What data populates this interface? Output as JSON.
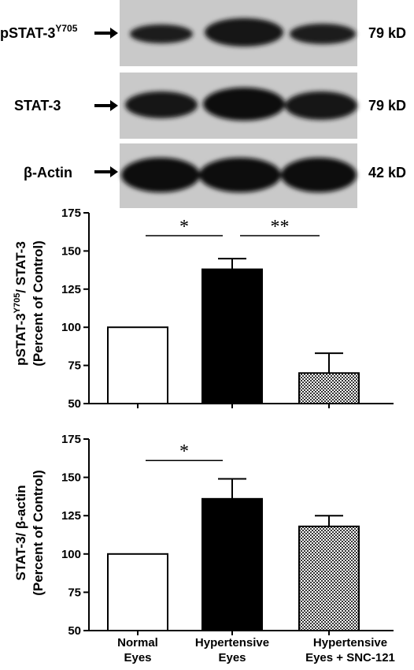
{
  "blots": [
    {
      "label": "pSTAT-3",
      "sup": "Y705",
      "kd": "79 kD"
    },
    {
      "label": "STAT-3",
      "sup": "",
      "kd": "79 kD"
    },
    {
      "label": "β-Actin",
      "sup": "",
      "kd": "42 kD"
    }
  ],
  "chart_data": [
    {
      "type": "bar",
      "categories": [
        "Normal Eyes",
        "Hypertensive Eyes",
        "Hypertensive Eyes + SNC-121"
      ],
      "values": [
        100,
        138,
        70
      ],
      "errors": [
        0,
        7,
        13
      ],
      "ylim": [
        50,
        175
      ],
      "yticks": [
        50,
        75,
        100,
        125,
        150,
        175
      ],
      "ylabel_line1_prefix": "pSTAT-3",
      "ylabel_line1_sup": "Y705",
      "ylabel_line1_suffix": "/ STAT-3",
      "ylabel_line2": "(Percent of Control)",
      "fills": [
        "#ffffff",
        "#000000",
        "checker"
      ],
      "annotations": [
        {
          "text": "*",
          "from": 0,
          "to": 1,
          "y": 160
        },
        {
          "text": "**",
          "from": 1,
          "to": 2,
          "y": 160
        }
      ]
    },
    {
      "type": "bar",
      "categories": [
        "Normal Eyes",
        "Hypertensive Eyes",
        "Hypertensive Eyes + SNC-121"
      ],
      "values": [
        100,
        136,
        118
      ],
      "errors": [
        0,
        13,
        7
      ],
      "ylim": [
        50,
        175
      ],
      "yticks": [
        50,
        75,
        100,
        125,
        150,
        175
      ],
      "ylabel_line1_prefix": "STAT-3/ β-actin",
      "ylabel_line1_sup": "",
      "ylabel_line1_suffix": "",
      "ylabel_line2": "(Percent of Control)",
      "fills": [
        "#ffffff",
        "#000000",
        "checker"
      ],
      "annotations": [
        {
          "text": "*",
          "from": 0,
          "to": 1,
          "y": 161
        }
      ]
    }
  ],
  "x_labels": [
    {
      "line1": "Normal",
      "line2": "Eyes"
    },
    {
      "line1": "Hypertensive",
      "line2": "Eyes"
    },
    {
      "line1": "Hypertensive",
      "line2": "Eyes + SNC-121"
    }
  ]
}
